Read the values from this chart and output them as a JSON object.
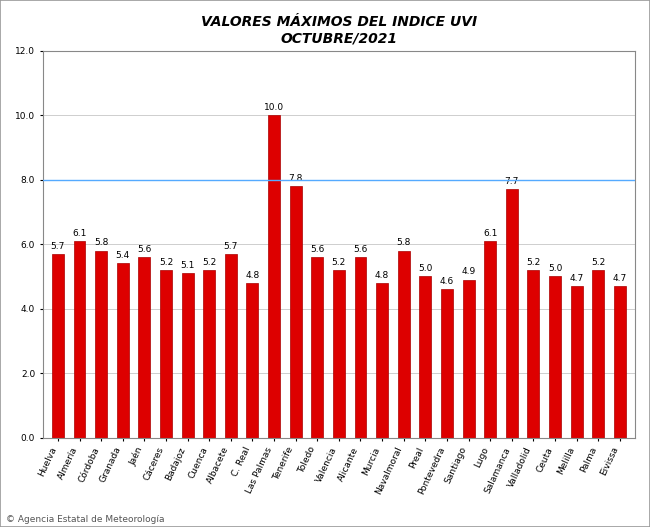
{
  "title_line1": "VALORES MÁXIMOS DEL INDICE UVI",
  "title_line2": "OCTUBRE/2021",
  "categories": [
    "Huelva",
    "Almería",
    "Córdoba",
    "Granada",
    "Jaén",
    "Cáceres",
    "Badajoz",
    "Cuenca",
    "Albacete",
    "C. Real",
    "Las Palmas",
    "Tenerife",
    "Toledo",
    "Valencia",
    "Alicante",
    "Murcia",
    "Navalmoral",
    "Preal",
    "Pontevedra",
    "Santiago",
    "Lugo",
    "Salamanca",
    "Valladolid",
    "Ceuta",
    "Melilla",
    "Palma",
    "Eivissa"
  ],
  "values": [
    5.7,
    6.1,
    5.8,
    5.4,
    5.6,
    5.2,
    5.1,
    5.2,
    5.7,
    4.8,
    10.0,
    7.8,
    5.6,
    5.2,
    5.6,
    4.8,
    5.8,
    5.0,
    4.6,
    4.9,
    6.1,
    7.7,
    5.2,
    5.0,
    4.7,
    5.2,
    4.7
  ],
  "bar_color": "#dd0000",
  "bar_edge_color": "#aa0000",
  "hline_y": 8.0,
  "hline_color": "#55aaff",
  "ylim": [
    0.0,
    12.0
  ],
  "yticks": [
    0.0,
    2.0,
    4.0,
    6.0,
    8.0,
    10.0,
    12.0
  ],
  "value_fontsize": 6.5,
  "label_fontsize": 6.5,
  "title_fontsize": 10,
  "background_color": "#ffffff",
  "plot_bg_color": "#ffffff",
  "copyright_text": "© Agencia Estatal de Meteorología",
  "copyright_fontsize": 6.5,
  "grid_color": "#bbbbbb",
  "spine_color": "#888888",
  "bar_width": 0.55
}
